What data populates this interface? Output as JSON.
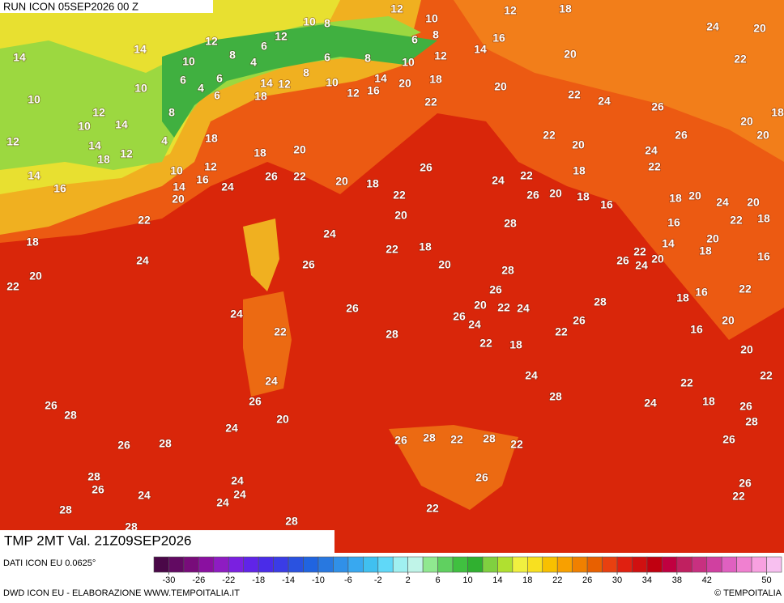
{
  "header": {
    "run": "RUN ICON 05SEP2026 00 Z"
  },
  "footer": {
    "field": "TMP 2MT Val. 21Z09SEP2026",
    "source": "DATI ICON EU 0.0625°",
    "credit": "DWD ICON EU - ELABORAZIONE WWW.TEMPOITALIA.IT",
    "copyright": "© TEMPOITALIA"
  },
  "legend": {
    "lim": [
      -32,
      52
    ],
    "ticks": [
      -30,
      -26,
      -22,
      -18,
      -14,
      -10,
      -6,
      -2,
      2,
      6,
      10,
      14,
      18,
      22,
      26,
      30,
      34,
      38,
      42,
      50
    ],
    "colors": [
      "#4a0848",
      "#620a62",
      "#780c7a",
      "#8a10a0",
      "#8e1cc2",
      "#7a20e0",
      "#6024e8",
      "#4a2ce8",
      "#3a3ce6",
      "#2a52e0",
      "#2064e0",
      "#2878e0",
      "#3090e8",
      "#38a8f0",
      "#40c0f0",
      "#60d8f8",
      "#a0f0f0",
      "#c0f4e8",
      "#90e890",
      "#60d060",
      "#40c040",
      "#30b030",
      "#80d040",
      "#b0e030",
      "#f0f040",
      "#f8e020",
      "#f8c000",
      "#f8a000",
      "#f08000",
      "#e86000",
      "#e84010",
      "#e02010",
      "#d01010",
      "#c00010",
      "#c00040",
      "#c02060",
      "#c83080",
      "#d040a0",
      "#e060c0",
      "#f080d0",
      "#f8a0e0",
      "#f8c0f0"
    ]
  },
  "map_labels": [
    12,
    10,
    8,
    10,
    12,
    18,
    24,
    20,
    6,
    8,
    14,
    16,
    12,
    6,
    12,
    14,
    14,
    10,
    8,
    4,
    6,
    8,
    10,
    12,
    20,
    22,
    6,
    4,
    6,
    6,
    8,
    14,
    12,
    10,
    12,
    16,
    14,
    20,
    18,
    20,
    10,
    10,
    12,
    8,
    18,
    22,
    22,
    24,
    26,
    18,
    20,
    10,
    14,
    12,
    14,
    12,
    18,
    4,
    18,
    22,
    20,
    26,
    20,
    24,
    18,
    20,
    10,
    12,
    14,
    16,
    14,
    20,
    24,
    26,
    22,
    20,
    18,
    26,
    24,
    22,
    22,
    18,
    16,
    22,
    26,
    20,
    18,
    16,
    18,
    20,
    24,
    20,
    22,
    20,
    28,
    22,
    18,
    16,
    24,
    20,
    18,
    18,
    22,
    14,
    22,
    18,
    24,
    26,
    20,
    28,
    26,
    24,
    20,
    16,
    20,
    22,
    26,
    16,
    22,
    28,
    20,
    22,
    24,
    18,
    24,
    26,
    26,
    24,
    26,
    22,
    20,
    22,
    16,
    28,
    22,
    18,
    20,
    24,
    24,
    22,
    22,
    26,
    26,
    28,
    24,
    18,
    26,
    28,
    20,
    28,
    24,
    26,
    28,
    22,
    28,
    22,
    26,
    26,
    28,
    28,
    24,
    26,
    26,
    24,
    24,
    24,
    26,
    22,
    28,
    22,
    28,
    28
  ]
}
